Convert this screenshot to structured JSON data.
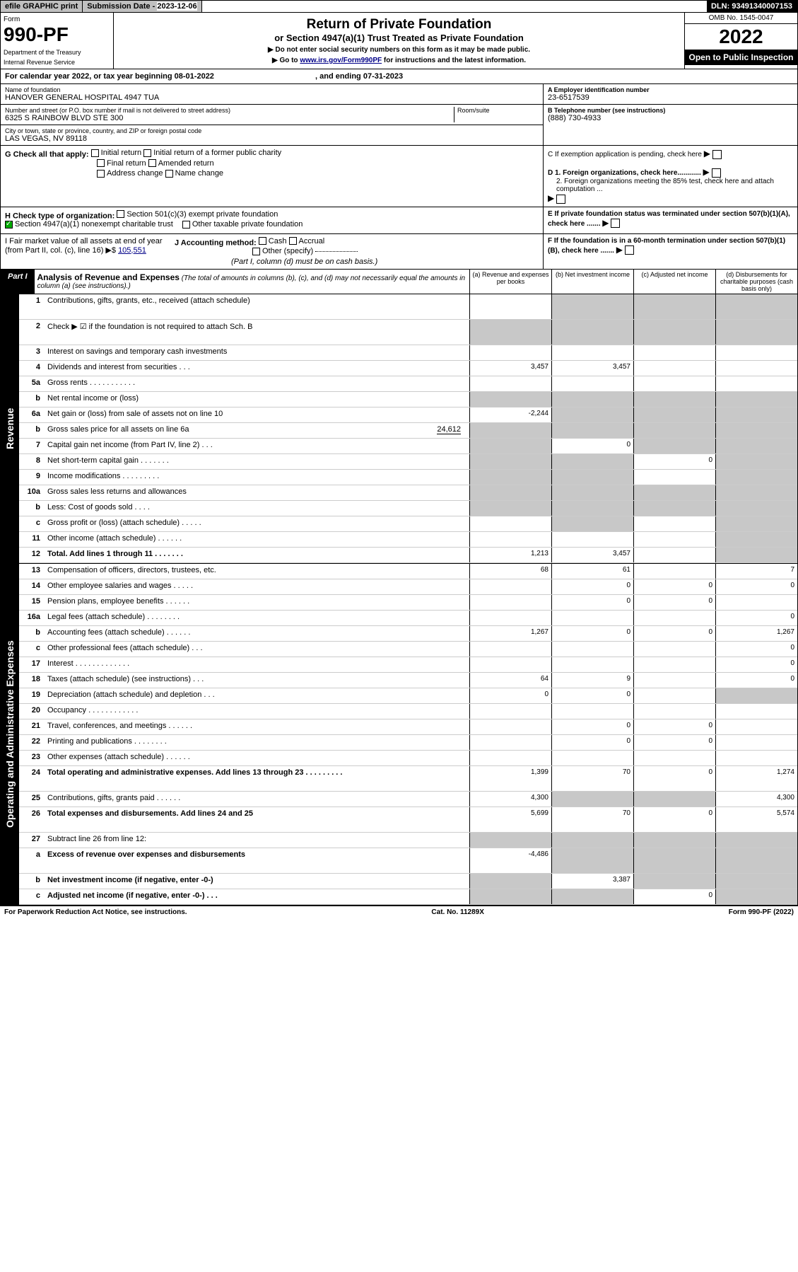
{
  "topbar": {
    "efile": "efile GRAPHIC print",
    "subdate_label": "Submission Date - ",
    "subdate": "2023-12-06",
    "dln": "DLN: 93491340007153"
  },
  "header": {
    "form_label": "Form",
    "form_no": "990-PF",
    "dept1": "Department of the Treasury",
    "dept2": "Internal Revenue Service",
    "title": "Return of Private Foundation",
    "subtitle": "or Section 4947(a)(1) Trust Treated as Private Foundation",
    "note1": "▶ Do not enter social security numbers on this form as it may be made public.",
    "note2": "▶ Go to ",
    "link": "www.irs.gov/Form990PF",
    "note3": " for instructions and the latest information.",
    "omb": "OMB No. 1545-0047",
    "year": "2022",
    "open": "Open to Public Inspection"
  },
  "cal": {
    "text": "For calendar year 2022, or tax year beginning ",
    "begin": "08-01-2022",
    "mid": ", and ending ",
    "end": "07-31-2023"
  },
  "info": {
    "name_lbl": "Name of foundation",
    "name": "HANOVER GENERAL HOSPITAL 4947 TUA",
    "addr_lbl": "Number and street (or P.O. box number if mail is not delivered to street address)",
    "addr": "6325 S RAINBOW BLVD STE 300",
    "room_lbl": "Room/suite",
    "city_lbl": "City or town, state or province, country, and ZIP or foreign postal code",
    "city": "LAS VEGAS, NV  89118",
    "a_lbl": "A Employer identification number",
    "a_val": "23-6517539",
    "b_lbl": "B Telephone number (see instructions)",
    "b_val": "(888) 730-4933",
    "c_lbl": "C If exemption application is pending, check here",
    "d1_lbl": "D 1. Foreign organizations, check here............",
    "d2_lbl": "2. Foreign organizations meeting the 85% test, check here and attach computation ...",
    "e_lbl": "E If private foundation status was terminated under section 507(b)(1)(A), check here .......",
    "f_lbl": "F If the foundation is in a 60-month termination under section 507(b)(1)(B), check here .......",
    "g_lbl": "G Check all that apply:",
    "g_opts": [
      "Initial return",
      "Initial return of a former public charity",
      "Final return",
      "Amended return",
      "Address change",
      "Name change"
    ],
    "h_lbl": "H Check type of organization:",
    "h1": "Section 501(c)(3) exempt private foundation",
    "h2": "Section 4947(a)(1) nonexempt charitable trust",
    "h3": "Other taxable private foundation",
    "i_lbl": "I Fair market value of all assets at end of year (from Part II, col. (c), line 16) ▶$ ",
    "i_val": "105,551",
    "j_lbl": "J Accounting method:",
    "j_opts": [
      "Cash",
      "Accrual"
    ],
    "j_other": "Other (specify)",
    "j_note": "(Part I, column (d) must be on cash basis.)"
  },
  "part1": {
    "part": "Part I",
    "title": "Analysis of Revenue and Expenses",
    "desc": "(The total of amounts in columns (b), (c), and (d) may not necessarily equal the amounts in column (a) (see instructions).)",
    "col_a": "(a) Revenue and expenses per books",
    "col_b": "(b) Net investment income",
    "col_c": "(c) Adjusted net income",
    "col_d": "(d) Disbursements for charitable purposes (cash basis only)"
  },
  "side_labels": {
    "rev": "Revenue",
    "exp": "Operating and Administrative Expenses"
  },
  "rows": {
    "r1": {
      "n": "1",
      "l": "Contributions, gifts, grants, etc., received (attach schedule)",
      "a": "",
      "b_grey": true,
      "c_grey": true,
      "d_grey": true
    },
    "r2": {
      "n": "2",
      "l": "Check ▶ ☑ if the foundation is not required to attach Sch. B",
      "all_grey": true
    },
    "r3": {
      "n": "3",
      "l": "Interest on savings and temporary cash investments"
    },
    "r4": {
      "n": "4",
      "l": "Dividends and interest from securities   .   .   .",
      "a": "3,457",
      "b": "3,457"
    },
    "r5a": {
      "n": "5a",
      "l": "Gross rents   .   .   .   .   .   .   .   .   .   .   ."
    },
    "r5b": {
      "n": "b",
      "l": "Net rental income or (loss)",
      "a_grey": true,
      "b_grey": true,
      "c_grey": true,
      "d_grey": true
    },
    "r6a": {
      "n": "6a",
      "l": "Net gain or (loss) from sale of assets not on line 10",
      "a": "-2,244",
      "b_grey": true,
      "c_grey": true,
      "d_grey": true
    },
    "r6b": {
      "n": "b",
      "l": "Gross sales price for all assets on line 6a",
      "v": "24,612",
      "all_grey": true
    },
    "r7": {
      "n": "7",
      "l": "Capital gain net income (from Part IV, line 2)   .   .   .",
      "a_grey": true,
      "b": "0",
      "c_grey": true,
      "d_grey": true
    },
    "r8": {
      "n": "8",
      "l": "Net short-term capital gain   .   .   .   .   .   .   .",
      "a_grey": true,
      "b_grey": true,
      "c": "0",
      "d_grey": true
    },
    "r9": {
      "n": "9",
      "l": "Income modifications   .   .   .   .   .   .   .   .   .",
      "a_grey": true,
      "b_grey": true,
      "d_grey": true
    },
    "r10a": {
      "n": "10a",
      "l": "Gross sales less returns and allowances",
      "all_grey": true
    },
    "r10b": {
      "n": "b",
      "l": "Less: Cost of goods sold   .   .   .   .",
      "all_grey": true
    },
    "r10c": {
      "n": "c",
      "l": "Gross profit or (loss) (attach schedule)   .   .   .   .   .",
      "b_grey": true,
      "d_grey": true
    },
    "r11": {
      "n": "11",
      "l": "Other income (attach schedule)   .   .   .   .   .   .",
      "d_grey": true
    },
    "r12": {
      "n": "12",
      "l": "Total. Add lines 1 through 11   .   .   .   .   .   .   .",
      "a": "1,213",
      "b": "3,457",
      "d_grey": true,
      "bold": true
    },
    "r13": {
      "n": "13",
      "l": "Compensation of officers, directors, trustees, etc.",
      "a": "68",
      "b": "61",
      "d": "7"
    },
    "r14": {
      "n": "14",
      "l": "Other employee salaries and wages   .   .   .   .   .",
      "b": "0",
      "c": "0",
      "d": "0"
    },
    "r15": {
      "n": "15",
      "l": "Pension plans, employee benefits   .   .   .   .   .   .",
      "b": "0",
      "c": "0"
    },
    "r16a": {
      "n": "16a",
      "l": "Legal fees (attach schedule)   .   .   .   .   .   .   .   .",
      "d": "0"
    },
    "r16b": {
      "n": "b",
      "l": "Accounting fees (attach schedule)   .   .   .   .   .   .",
      "a": "1,267",
      "b": "0",
      "c": "0",
      "d": "1,267"
    },
    "r16c": {
      "n": "c",
      "l": "Other professional fees (attach schedule)   .   .   .",
      "d": "0"
    },
    "r17": {
      "n": "17",
      "l": "Interest   .   .   .   .   .   .   .   .   .   .   .   .   .",
      "d": "0"
    },
    "r18": {
      "n": "18",
      "l": "Taxes (attach schedule) (see instructions)   .   .   .",
      "a": "64",
      "b": "9",
      "d": "0"
    },
    "r19": {
      "n": "19",
      "l": "Depreciation (attach schedule) and depletion   .   .   .",
      "a": "0",
      "b": "0",
      "d_grey": true
    },
    "r20": {
      "n": "20",
      "l": "Occupancy   .   .   .   .   .   .   .   .   .   .   .   ."
    },
    "r21": {
      "n": "21",
      "l": "Travel, conferences, and meetings   .   .   .   .   .   .",
      "b": "0",
      "c": "0"
    },
    "r22": {
      "n": "22",
      "l": "Printing and publications   .   .   .   .   .   .   .   .",
      "b": "0",
      "c": "0"
    },
    "r23": {
      "n": "23",
      "l": "Other expenses (attach schedule)   .   .   .   .   .   ."
    },
    "r24": {
      "n": "24",
      "l": "Total operating and administrative expenses. Add lines 13 through 23   .   .   .   .   .   .   .   .   .",
      "a": "1,399",
      "b": "70",
      "c": "0",
      "d": "1,274",
      "bold": true
    },
    "r25": {
      "n": "25",
      "l": "Contributions, gifts, grants paid   .   .   .   .   .   .",
      "a": "4,300",
      "b_grey": true,
      "c_grey": true,
      "d": "4,300"
    },
    "r26": {
      "n": "26",
      "l": "Total expenses and disbursements. Add lines 24 and 25",
      "a": "5,699",
      "b": "70",
      "c": "0",
      "d": "5,574",
      "bold": true
    },
    "r27": {
      "n": "27",
      "l": "Subtract line 26 from line 12:",
      "a_grey": true,
      "b_grey": true,
      "c_grey": true,
      "d_grey": true
    },
    "r27a": {
      "n": "a",
      "l": "Excess of revenue over expenses and disbursements",
      "a": "-4,486",
      "b_grey": true,
      "c_grey": true,
      "d_grey": true,
      "bold": true
    },
    "r27b": {
      "n": "b",
      "l": "Net investment income (if negative, enter -0-)",
      "a_grey": true,
      "b": "3,387",
      "c_grey": true,
      "d_grey": true,
      "bold": true
    },
    "r27c": {
      "n": "c",
      "l": "Adjusted net income (if negative, enter -0-)   .   .   .",
      "a_grey": true,
      "b_grey": true,
      "c": "0",
      "d_grey": true,
      "bold": true
    }
  },
  "footer": {
    "left": "For Paperwork Reduction Act Notice, see instructions.",
    "mid": "Cat. No. 11289X",
    "right": "Form 990-PF (2022)"
  }
}
